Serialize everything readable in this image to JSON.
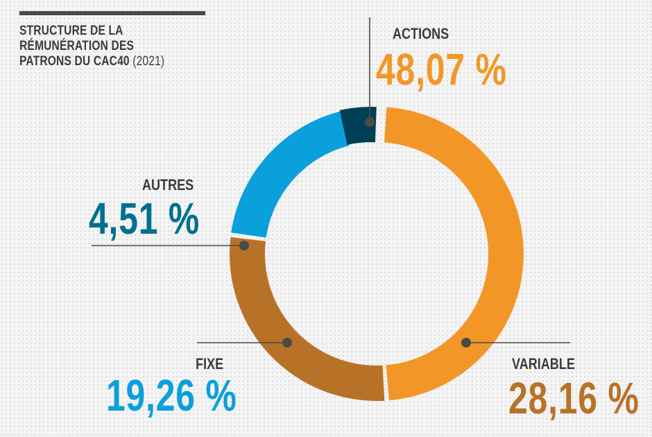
{
  "header": {
    "title_line1": "STRUCTURE DE LA RÉMUNÉRATION DES",
    "title_line2": "PATRONS DU CAC40",
    "title_year": "(2021)"
  },
  "labels": {
    "actions": {
      "name": "ACTIONS",
      "value": "48,07 %"
    },
    "variable": {
      "name": "VARIABLE",
      "value": "28,16 %"
    },
    "fixe": {
      "name": "FIXE",
      "value": "19,26 %"
    },
    "autres": {
      "name": "AUTRES",
      "value": "4,51 %"
    }
  },
  "chart_data": {
    "type": "pie",
    "title": "STRUCTURE DE LA RÉMUNÉRATION DES PATRONS DU CAC40 (2021)",
    "series": [
      {
        "name": "ACTIONS",
        "value": 48.07,
        "color": "#f29727"
      },
      {
        "name": "VARIABLE",
        "value": 28.16,
        "color": "#b87228"
      },
      {
        "name": "FIXE",
        "value": 19.26,
        "color": "#0aa0dc"
      },
      {
        "name": "AUTRES",
        "value": 4.51,
        "color": "#003f55"
      }
    ],
    "unit": "%",
    "style": "donut"
  },
  "colors": {
    "actions": "#f29727",
    "variable": "#b87228",
    "fixe": "#0aa0dc",
    "autres_text": "#00708f",
    "autres_slice": "#003f55",
    "leader": "#4a4a4a"
  }
}
